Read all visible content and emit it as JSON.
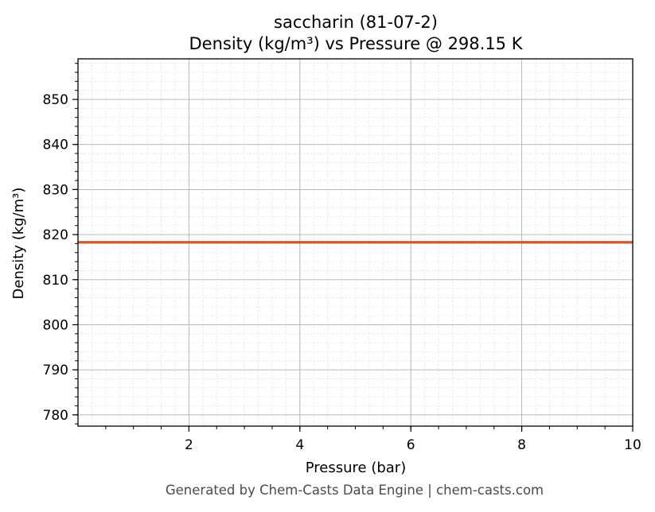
{
  "chart_data": {
    "type": "line",
    "title_line1": "saccharin (81-07-2)",
    "title_line2": "Density (kg/m³) vs Pressure @ 298.15 K",
    "xlabel": "Pressure (bar)",
    "ylabel": "Density (kg/m³)",
    "xlim": [
      0.0,
      10
    ],
    "ylim": [
      777.5,
      859
    ],
    "xticks": [
      2,
      4,
      6,
      8,
      10
    ],
    "yticks": [
      780,
      790,
      800,
      810,
      820,
      830,
      840,
      850
    ],
    "grid": true,
    "series": [
      {
        "x": [
          0.0,
          1,
          2,
          3,
          4,
          5,
          6,
          7,
          8,
          9,
          10
        ],
        "y": [
          818.3,
          818.3,
          818.3,
          818.3,
          818.3,
          818.3,
          818.3,
          818.3,
          818.3,
          818.3,
          818.3
        ],
        "color": "#cc5a2e"
      }
    ]
  },
  "footer": "Generated by Chem-Casts Data Engine | chem-casts.com"
}
